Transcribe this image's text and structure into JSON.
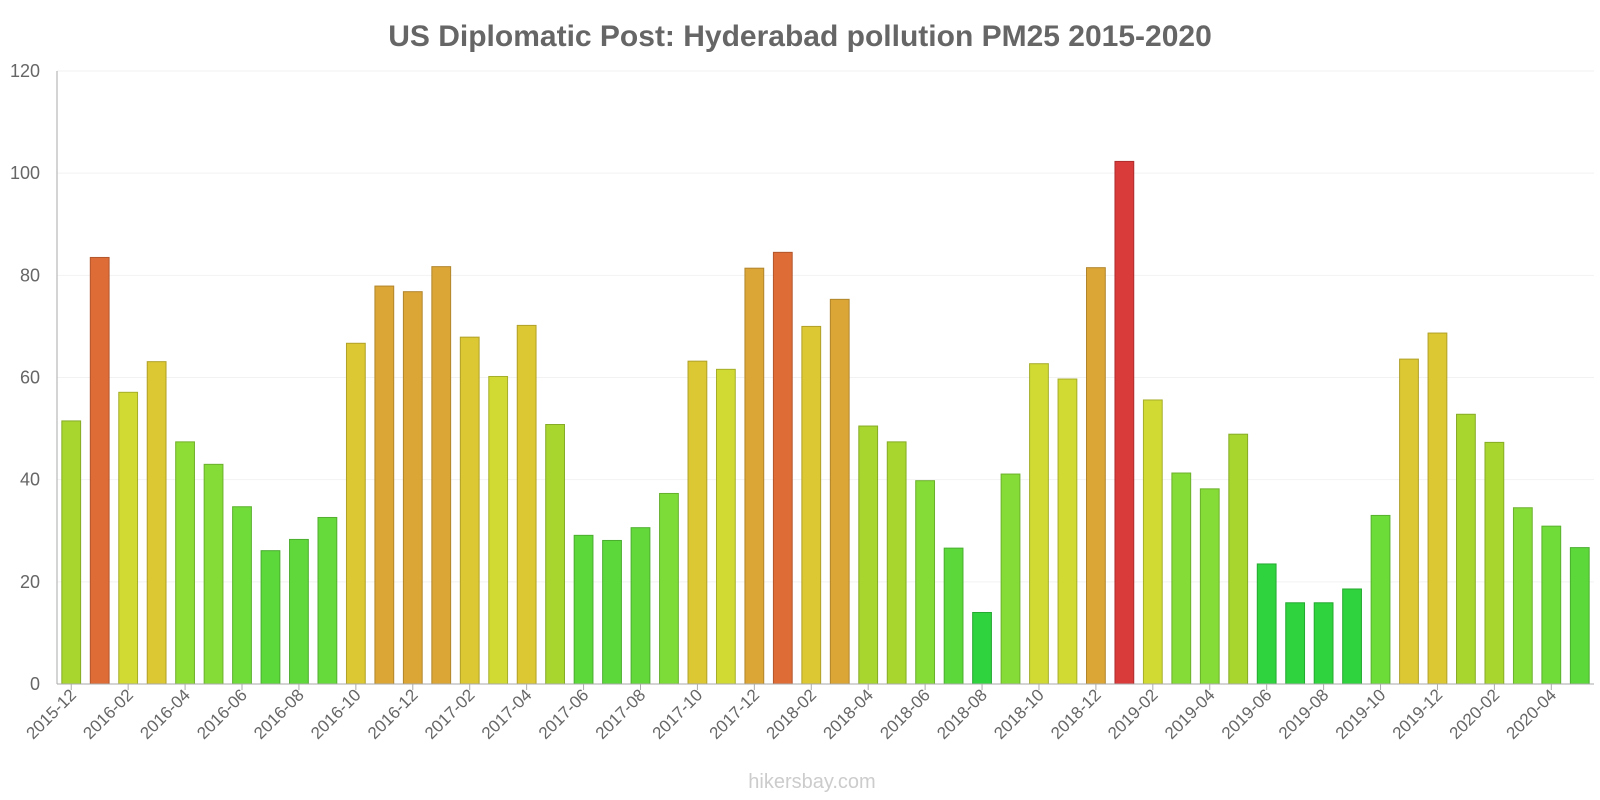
{
  "chart_data": {
    "type": "bar",
    "title": "US Diplomatic Post: Hyderabad pollution PM25 2015-2020",
    "xlabel": "",
    "ylabel": "",
    "ylim": [
      0,
      120
    ],
    "yticks": [
      0,
      20,
      40,
      60,
      80,
      100,
      120
    ],
    "grid": true,
    "categories": [
      "2015-12",
      "2016-01",
      "2016-02",
      "2016-03",
      "2016-04",
      "2016-05",
      "2016-06",
      "2016-07",
      "2016-08",
      "2016-09",
      "2016-10",
      "2016-11",
      "2016-12",
      "2017-01",
      "2017-02",
      "2017-03",
      "2017-04",
      "2017-05",
      "2017-06",
      "2017-07",
      "2017-08",
      "2017-09",
      "2017-10",
      "2017-11",
      "2017-12",
      "2018-01",
      "2018-02",
      "2018-03",
      "2018-04",
      "2018-05",
      "2018-06",
      "2018-07",
      "2018-08",
      "2018-09",
      "2018-10",
      "2018-11",
      "2018-12",
      "2019-01",
      "2019-02",
      "2019-03",
      "2019-04",
      "2019-05",
      "2019-06",
      "2019-07",
      "2019-08",
      "2019-09",
      "2019-10",
      "2019-11",
      "2019-12",
      "2020-01",
      "2020-02",
      "2020-03",
      "2020-04",
      "2020-05"
    ],
    "values": [
      51.5,
      83.5,
      57.1,
      63.1,
      47.4,
      43.0,
      34.7,
      26.1,
      28.3,
      32.6,
      66.7,
      77.9,
      76.8,
      81.7,
      67.9,
      60.2,
      70.2,
      50.8,
      29.1,
      28.1,
      30.6,
      37.3,
      63.2,
      61.6,
      81.4,
      84.5,
      70.0,
      75.3,
      50.5,
      47.4,
      39.8,
      26.6,
      14.0,
      41.1,
      62.7,
      59.7,
      81.5,
      102.3,
      55.6,
      41.3,
      38.2,
      48.9,
      23.5,
      15.9,
      15.9,
      18.6,
      33.0,
      63.6,
      68.7,
      52.8,
      47.3,
      34.5,
      30.9,
      26.7
    ],
    "colors": [
      "#a8d62f",
      "#de6c37",
      "#d0da33",
      "#dcc832",
      "#8edc36",
      "#86dc37",
      "#70dc39",
      "#5cd83b",
      "#60d83b",
      "#66da3a",
      "#dcc832",
      "#dca637",
      "#dca637",
      "#dca637",
      "#dcc832",
      "#d0da33",
      "#dcc832",
      "#a8d62f",
      "#5cd83b",
      "#5cd83b",
      "#62d83b",
      "#7edc38",
      "#dcc832",
      "#d0da33",
      "#dca637",
      "#de6c37",
      "#dcc832",
      "#dca637",
      "#a8d62f",
      "#a8d62f",
      "#86dc37",
      "#5cd83b",
      "#2ed33d",
      "#86dc37",
      "#d0da33",
      "#d0da33",
      "#dca637",
      "#d93a3a",
      "#d0da33",
      "#86dc37",
      "#86dc37",
      "#a8d62f",
      "#2ed33d",
      "#2ed33d",
      "#2ed33d",
      "#2ed33d",
      "#6cdc39",
      "#dcc832",
      "#dcc832",
      "#a8d62f",
      "#a8d62f",
      "#86dc37",
      "#70dc39",
      "#5cd83b"
    ],
    "x_tick_labels": [
      "2015-12",
      "2016-02",
      "2016-04",
      "2016-06",
      "2016-08",
      "2016-10",
      "2016-12",
      "2017-02",
      "2017-04",
      "2017-06",
      "2017-08",
      "2017-10",
      "2017-12",
      "2018-02",
      "2018-04",
      "2018-06",
      "2018-08",
      "2018-10",
      "2018-12",
      "2019-02",
      "2019-04",
      "2019-06",
      "2019-08",
      "2019-10",
      "2019-12",
      "2020-02",
      "2020-04"
    ],
    "credit": "hikersbay.com"
  }
}
